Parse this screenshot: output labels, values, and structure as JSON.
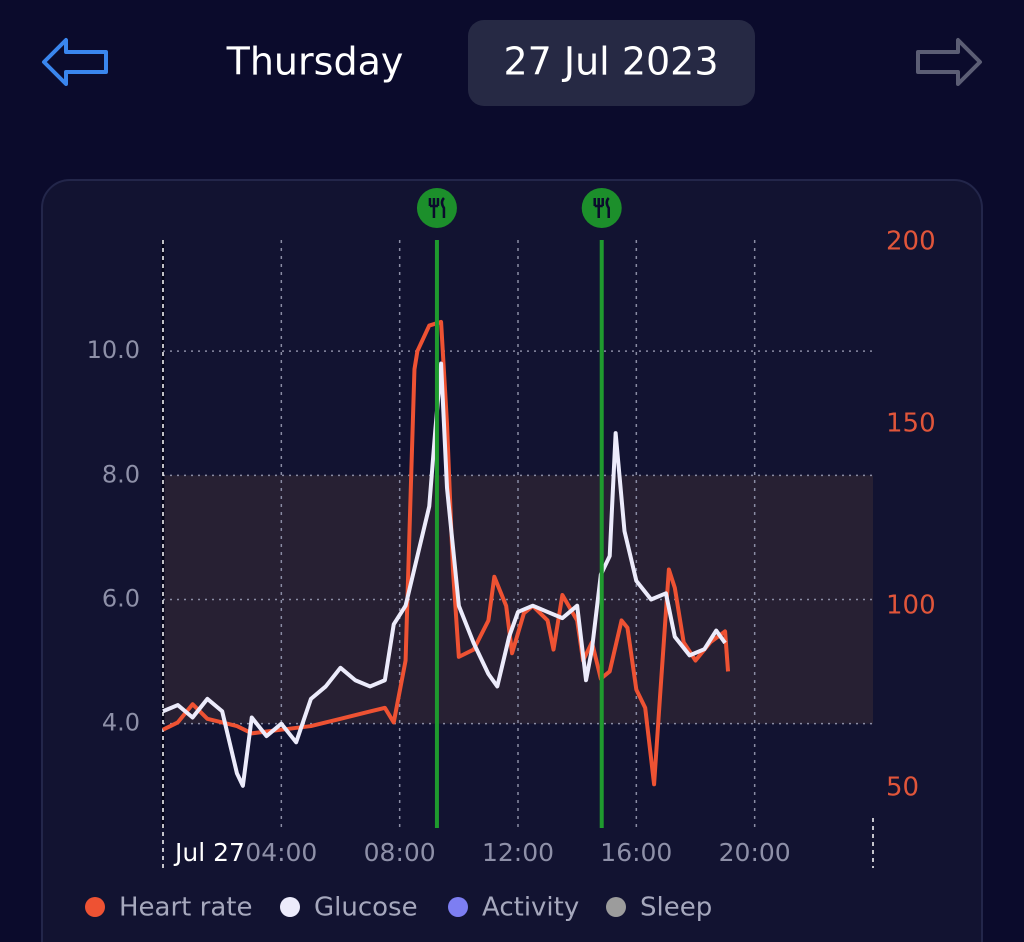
{
  "header": {
    "day": "Thursday",
    "date": "27 Jul 2023"
  },
  "chart_data": {
    "type": "line",
    "xlim": [
      0,
      24
    ],
    "xticks": [
      {
        "value": 0,
        "label": "Jul 27"
      },
      {
        "value": 4,
        "label": "04:00"
      },
      {
        "value": 8,
        "label": "08:00"
      },
      {
        "value": 12,
        "label": "12:00"
      },
      {
        "value": 16,
        "label": "16:00"
      },
      {
        "value": 20,
        "label": "20:00"
      }
    ],
    "ylim": [
      2.32,
      11.79
    ],
    "yticks": [
      {
        "value": 4,
        "label": "4.0"
      },
      {
        "value": 6,
        "label": "6.0"
      },
      {
        "value": 8,
        "label": "8.0"
      },
      {
        "value": 10,
        "label": "10.0"
      }
    ],
    "y2lim": [
      39,
      200.5
    ],
    "y2ticks": [
      50,
      100,
      150,
      200
    ],
    "target_range": [
      4,
      8
    ],
    "meals": [
      9.26,
      14.83
    ],
    "grid": true,
    "series": [
      {
        "name": "Heart rate",
        "color": "#ee5233",
        "axis": "y2",
        "x": [
          0,
          0.5,
          1,
          1.5,
          2,
          2.5,
          3,
          4,
          5,
          6,
          7,
          7.5,
          7.8,
          8.2,
          8.3,
          8.5,
          8.6,
          9,
          9.4,
          9.6,
          9.8,
          10,
          10.5,
          11,
          11.2,
          11.6,
          11.8,
          12.2,
          12.5,
          13,
          13.2,
          13.5,
          14,
          14.2,
          14.5,
          14.8,
          15.1,
          15.5,
          15.7,
          16,
          16.3,
          16.6,
          16.8,
          17.1,
          17.3,
          17.6,
          18,
          18.5,
          19,
          19.1
        ],
        "values": [
          66,
          68,
          73,
          69,
          68,
          67,
          65,
          66,
          67,
          69,
          71,
          72,
          68,
          85,
          112,
          165,
          170,
          177,
          178,
          150,
          110,
          86,
          88,
          96,
          108,
          100,
          87,
          98,
          100,
          96,
          88,
          103,
          96,
          85,
          90,
          80,
          82,
          96,
          94,
          77,
          72,
          51,
          75,
          110,
          105,
          90,
          85,
          90,
          93,
          82
        ]
      },
      {
        "name": "Glucose",
        "color": "#ecebfb",
        "axis": "y",
        "x": [
          0,
          0.5,
          1,
          1.5,
          2,
          2.5,
          2.7,
          3,
          3.5,
          4,
          4.5,
          5,
          5.5,
          6,
          6.5,
          7,
          7.5,
          7.8,
          8.2,
          8.5,
          9,
          9.2,
          9.4,
          9.6,
          10,
          10.5,
          11,
          11.3,
          11.7,
          12,
          12.5,
          13,
          13.5,
          14,
          14.3,
          14.5,
          14.8,
          15.1,
          15.3,
          15.6,
          16,
          16.5,
          17,
          17.3,
          17.8,
          18.3,
          18.7,
          19
        ],
        "values": [
          4.2,
          4.3,
          4.1,
          4.4,
          4.2,
          3.2,
          3.0,
          4.1,
          3.8,
          4.0,
          3.7,
          4.4,
          4.6,
          4.9,
          4.7,
          4.6,
          4.7,
          5.6,
          5.9,
          6.5,
          7.5,
          8.7,
          9.8,
          7.8,
          5.9,
          5.3,
          4.8,
          4.6,
          5.4,
          5.8,
          5.9,
          5.8,
          5.7,
          5.9,
          4.7,
          5.2,
          6.4,
          6.7,
          8.68,
          7.1,
          6.3,
          6.0,
          6.1,
          5.4,
          5.1,
          5.2,
          5.5,
          5.3
        ]
      },
      {
        "name": "Activity",
        "color": "#7d7ef2",
        "axis": "y",
        "x": [],
        "values": []
      },
      {
        "name": "Sleep",
        "color": "#9c9c9c",
        "axis": "y",
        "x": [],
        "values": []
      }
    ]
  }
}
